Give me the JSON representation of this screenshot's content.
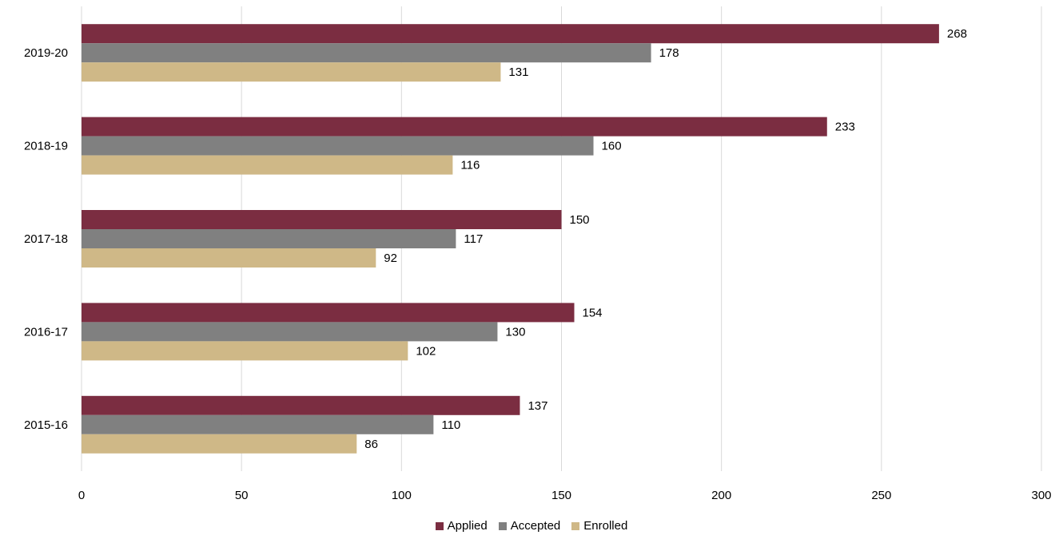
{
  "chart_data": {
    "type": "bar",
    "orientation": "horizontal",
    "categories": [
      "2019-20",
      "2018-19",
      "2017-18",
      "2016-17",
      "2015-16"
    ],
    "series": [
      {
        "name": "Applied",
        "color": "#7b2d41",
        "values": [
          268,
          233,
          150,
          154,
          137
        ]
      },
      {
        "name": "Accepted",
        "color": "#808080",
        "values": [
          178,
          160,
          117,
          130,
          110
        ]
      },
      {
        "name": "Enrolled",
        "color": "#cfb887",
        "values": [
          131,
          116,
          92,
          102,
          86
        ]
      }
    ],
    "xlim": [
      0,
      300
    ],
    "xticks": [
      "0",
      "50",
      "100",
      "150",
      "200",
      "250",
      "300"
    ],
    "grid": true,
    "legend_position": "bottom",
    "data_labels": true
  }
}
